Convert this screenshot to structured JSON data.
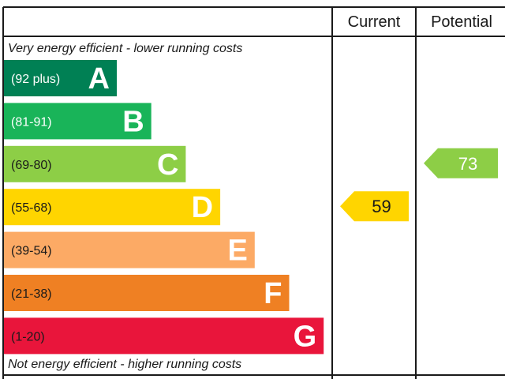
{
  "header": {
    "current_label": "Current",
    "potential_label": "Potential"
  },
  "captions": {
    "top": "Very energy efficient - lower running costs",
    "bottom": "Not energy efficient - higher running costs"
  },
  "chart_data": {
    "type": "bar",
    "bands": [
      {
        "letter": "A",
        "range": "(92 plus)",
        "min": 92,
        "max": null,
        "color": "#008054",
        "text_color": "#ffffff",
        "letter_color": "#ffffff"
      },
      {
        "letter": "B",
        "range": "(81-91)",
        "min": 81,
        "max": 91,
        "color": "#19b459",
        "text_color": "#ffffff",
        "letter_color": "#ffffff"
      },
      {
        "letter": "C",
        "range": "(69-80)",
        "min": 69,
        "max": 80,
        "color": "#8dce46",
        "text_color": "#1a1a1a",
        "letter_color": "#ffffff"
      },
      {
        "letter": "D",
        "range": "(55-68)",
        "min": 55,
        "max": 68,
        "color": "#ffd500",
        "text_color": "#1a1a1a",
        "letter_color": "#ffffff"
      },
      {
        "letter": "E",
        "range": "(39-54)",
        "min": 39,
        "max": 54,
        "color": "#fcaa65",
        "text_color": "#1a1a1a",
        "letter_color": "#ffffff"
      },
      {
        "letter": "F",
        "range": "(21-38)",
        "min": 21,
        "max": 38,
        "color": "#ef8023",
        "text_color": "#1a1a1a",
        "letter_color": "#ffffff"
      },
      {
        "letter": "G",
        "range": "(1-20)",
        "min": 1,
        "max": 20,
        "color": "#e9153b",
        "text_color": "#1a1a1a",
        "letter_color": "#ffffff"
      }
    ],
    "current": {
      "value": 59,
      "band": "D",
      "color": "#ffd500",
      "text_color": "#1a1a1a"
    },
    "potential": {
      "value": 73,
      "band": "C",
      "color": "#8dce46",
      "text_color": "#ffffff"
    }
  }
}
